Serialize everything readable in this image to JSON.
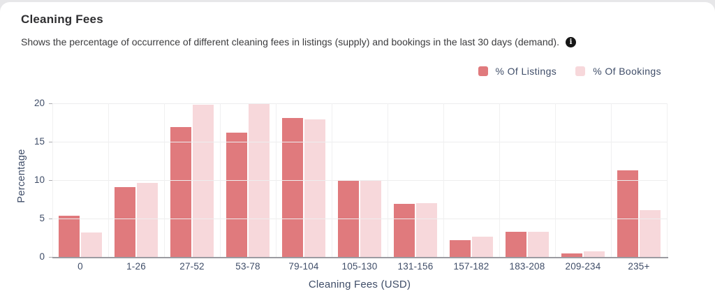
{
  "card": {
    "title": "Cleaning Fees",
    "subtitle": "Shows the percentage of occurrence of different cleaning fees in listings (supply) and bookings in the last 30 days (demand)."
  },
  "icons": {
    "info": "i"
  },
  "colors": {
    "listings": "#e07a7d",
    "bookings": "#f7d8db",
    "axis_text": "#3f4d68"
  },
  "chart_data": {
    "type": "bar",
    "title": "Cleaning Fees",
    "categories": [
      "0",
      "1-26",
      "27-52",
      "53-78",
      "79-104",
      "105-130",
      "131-156",
      "157-182",
      "183-208",
      "209-234",
      "235+"
    ],
    "series": [
      {
        "name": "% Of Listings",
        "color": "#e07a7d",
        "values": [
          5.4,
          9.1,
          16.9,
          16.2,
          18.1,
          10.0,
          6.9,
          2.2,
          3.3,
          0.5,
          11.3
        ]
      },
      {
        "name": "% Of Bookings",
        "color": "#f7d8db",
        "values": [
          3.2,
          9.6,
          19.8,
          20.0,
          17.9,
          9.9,
          7.0,
          2.6,
          3.3,
          0.7,
          6.1
        ]
      }
    ],
    "xlabel": "Cleaning Fees (USD)",
    "ylabel": "Percentage",
    "ylim": [
      0,
      20
    ],
    "yticks": [
      0,
      5,
      10,
      15,
      20
    ],
    "grid": true,
    "legend_position": "top-right"
  }
}
